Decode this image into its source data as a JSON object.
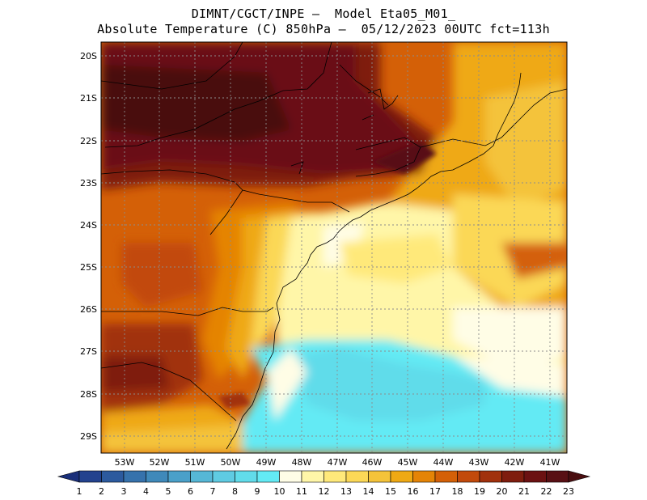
{
  "header": {
    "line1": "DIMNT/CGCT/INPE —  Model Eta05_M01_",
    "line2": "Absolute Temperature (C) 850hPa —  05/12/2023 00UTC fct=113h"
  },
  "axes": {
    "lat_labels": [
      "20S",
      "21S",
      "22S",
      "23S",
      "24S",
      "25S",
      "26S",
      "27S",
      "28S",
      "29S"
    ],
    "lon_labels": [
      "53W",
      "52W",
      "51W",
      "50W",
      "49W",
      "48W",
      "47W",
      "46W",
      "45W",
      "44W",
      "43W",
      "42W",
      "41W"
    ]
  },
  "colorbar": {
    "labels": [
      "1",
      "2",
      "3",
      "4",
      "5",
      "6",
      "7",
      "8",
      "9",
      "10",
      "11",
      "12",
      "13",
      "14",
      "15",
      "16",
      "17",
      "18",
      "19",
      "20",
      "21",
      "22",
      "23"
    ],
    "colors": [
      "#1a2f7a",
      "#23428e",
      "#2c5a9e",
      "#3672ac",
      "#3f89ba",
      "#4aa0c9",
      "#56b7d6",
      "#5fcbe2",
      "#61dcea",
      "#63eaf4",
      "#fffde6",
      "#fff6a8",
      "#ffe97a",
      "#fbd857",
      "#f4c33a",
      "#efa914",
      "#e58406",
      "#d46007",
      "#c24a0b",
      "#a1310c",
      "#7f1d0e",
      "#6b1112",
      "#581014",
      "#4a0e10"
    ]
  },
  "colors": {
    "land_border": "#000000",
    "grid": "#8c8c8c"
  }
}
